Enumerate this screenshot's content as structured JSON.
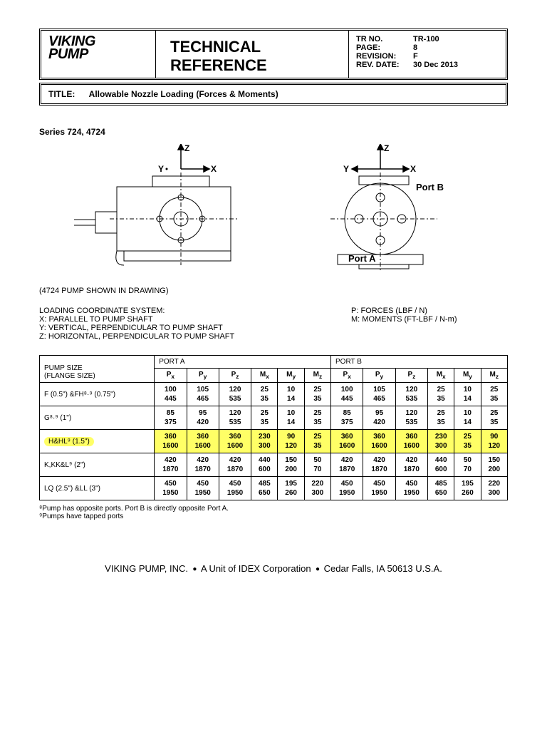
{
  "header": {
    "logo_line1": "VIKING",
    "logo_line2": "PUMP",
    "doc_title_line1": "TECHNICAL",
    "doc_title_line2": "REFERENCE",
    "meta": {
      "tr_no_label": "TR NO.",
      "tr_no": "TR-100",
      "page_label": "PAGE:",
      "page": "8",
      "rev_label": "REVISION:",
      "rev": "F",
      "date_label": "REV. DATE:",
      "date": "30 Dec 2013"
    },
    "title_label": "TITLE:",
    "title_text": "Allowable Nozzle Loading (Forces & Moments)"
  },
  "series": "Series 724, 4724",
  "drawing": {
    "axis_z": "Z",
    "axis_y": "Y",
    "axis_x": "X",
    "port_a": "Port A",
    "port_b": "Port B",
    "note": "(4724 PUMP SHOWN IN DRAWING)"
  },
  "coord": {
    "heading": "LOADING COORDINATE SYSTEM:",
    "x": "X:  PARALLEL TO PUMP SHAFT",
    "y": "Y:  VERTICAL, PERPENDICULAR TO PUMP SHAFT",
    "z": "Z:  HORIZONTAL, PERPENDICULAR TO PUMP SHAFT",
    "p": "P:  FORCES (LBF / N)",
    "m": "M:  MOMENTS (FT-LBF / N-m)"
  },
  "table": {
    "size_header": "PUMP SIZE\n(FLANGE SIZE)",
    "port_a": "PORT A",
    "port_b": "PORT B",
    "cols": [
      "Pₓ",
      "Pᵧ",
      "P₂",
      "Mₓ",
      "Mᵧ",
      "M₂"
    ],
    "px_a": "Pₓ",
    "py_a": "Pᵧ",
    "pz_a": "P₂",
    "mx_a": "Mₓ",
    "my_a": "Mᵧ",
    "mz_a": "M₂",
    "px_b": "Pₓ",
    "py_b": "Pᵧ",
    "pz_b": "P₂",
    "mx_b": "Mₓ",
    "my_b": "Mᵧ",
    "mz_b": "M₂",
    "rows": [
      {
        "size": "F (0.5\") &FH⁸·⁹ (0.75\")",
        "hl": false,
        "a": [
          [
            "100",
            "445"
          ],
          [
            "105",
            "465"
          ],
          [
            "120",
            "535"
          ],
          [
            "25",
            "35"
          ],
          [
            "10",
            "14"
          ],
          [
            "25",
            "35"
          ]
        ],
        "b": [
          [
            "100",
            "445"
          ],
          [
            "105",
            "465"
          ],
          [
            "120",
            "535"
          ],
          [
            "25",
            "35"
          ],
          [
            "10",
            "14"
          ],
          [
            "25",
            "35"
          ]
        ]
      },
      {
        "size": "G⁸·⁹ (1\")",
        "hl": false,
        "a": [
          [
            "85",
            "375"
          ],
          [
            "95",
            "420"
          ],
          [
            "120",
            "535"
          ],
          [
            "25",
            "35"
          ],
          [
            "10",
            "14"
          ],
          [
            "25",
            "35"
          ]
        ],
        "b": [
          [
            "85",
            "375"
          ],
          [
            "95",
            "420"
          ],
          [
            "120",
            "535"
          ],
          [
            "25",
            "35"
          ],
          [
            "10",
            "14"
          ],
          [
            "25",
            "35"
          ]
        ]
      },
      {
        "size": "H&HL⁹ (1.5\")",
        "hl": true,
        "a": [
          [
            "360",
            "1600"
          ],
          [
            "360",
            "1600"
          ],
          [
            "360",
            "1600"
          ],
          [
            "230",
            "300"
          ],
          [
            "90",
            "120"
          ],
          [
            "25",
            "35"
          ]
        ],
        "b": [
          [
            "360",
            "1600"
          ],
          [
            "360",
            "1600"
          ],
          [
            "360",
            "1600"
          ],
          [
            "230",
            "300"
          ],
          [
            "25",
            "35"
          ],
          [
            "90",
            "120"
          ]
        ]
      },
      {
        "size": "K,KK&L⁹ (2\")",
        "hl": false,
        "a": [
          [
            "420",
            "1870"
          ],
          [
            "420",
            "1870"
          ],
          [
            "420",
            "1870"
          ],
          [
            "440",
            "600"
          ],
          [
            "150",
            "200"
          ],
          [
            "50",
            "70"
          ]
        ],
        "b": [
          [
            "420",
            "1870"
          ],
          [
            "420",
            "1870"
          ],
          [
            "420",
            "1870"
          ],
          [
            "440",
            "600"
          ],
          [
            "50",
            "70"
          ],
          [
            "150",
            "200"
          ]
        ]
      },
      {
        "size": "LQ (2.5\") &LL (3\")",
        "hl": false,
        "a": [
          [
            "450",
            "1950"
          ],
          [
            "450",
            "1950"
          ],
          [
            "450",
            "1950"
          ],
          [
            "485",
            "650"
          ],
          [
            "195",
            "260"
          ],
          [
            "220",
            "300"
          ]
        ],
        "b": [
          [
            "450",
            "1950"
          ],
          [
            "450",
            "1950"
          ],
          [
            "450",
            "1950"
          ],
          [
            "485",
            "650"
          ],
          [
            "195",
            "260"
          ],
          [
            "220",
            "300"
          ]
        ]
      }
    ]
  },
  "footnotes": {
    "n8": "⁸Pump has opposite ports.  Port B is directly opposite Port A.",
    "n9": "⁹Pumps have tapped ports"
  },
  "footer": {
    "company": "VIKING PUMP, INC.",
    "unit": "A Unit of IDEX Corporation",
    "addr": "Cedar Falls, IA 50613  U.S.A."
  }
}
